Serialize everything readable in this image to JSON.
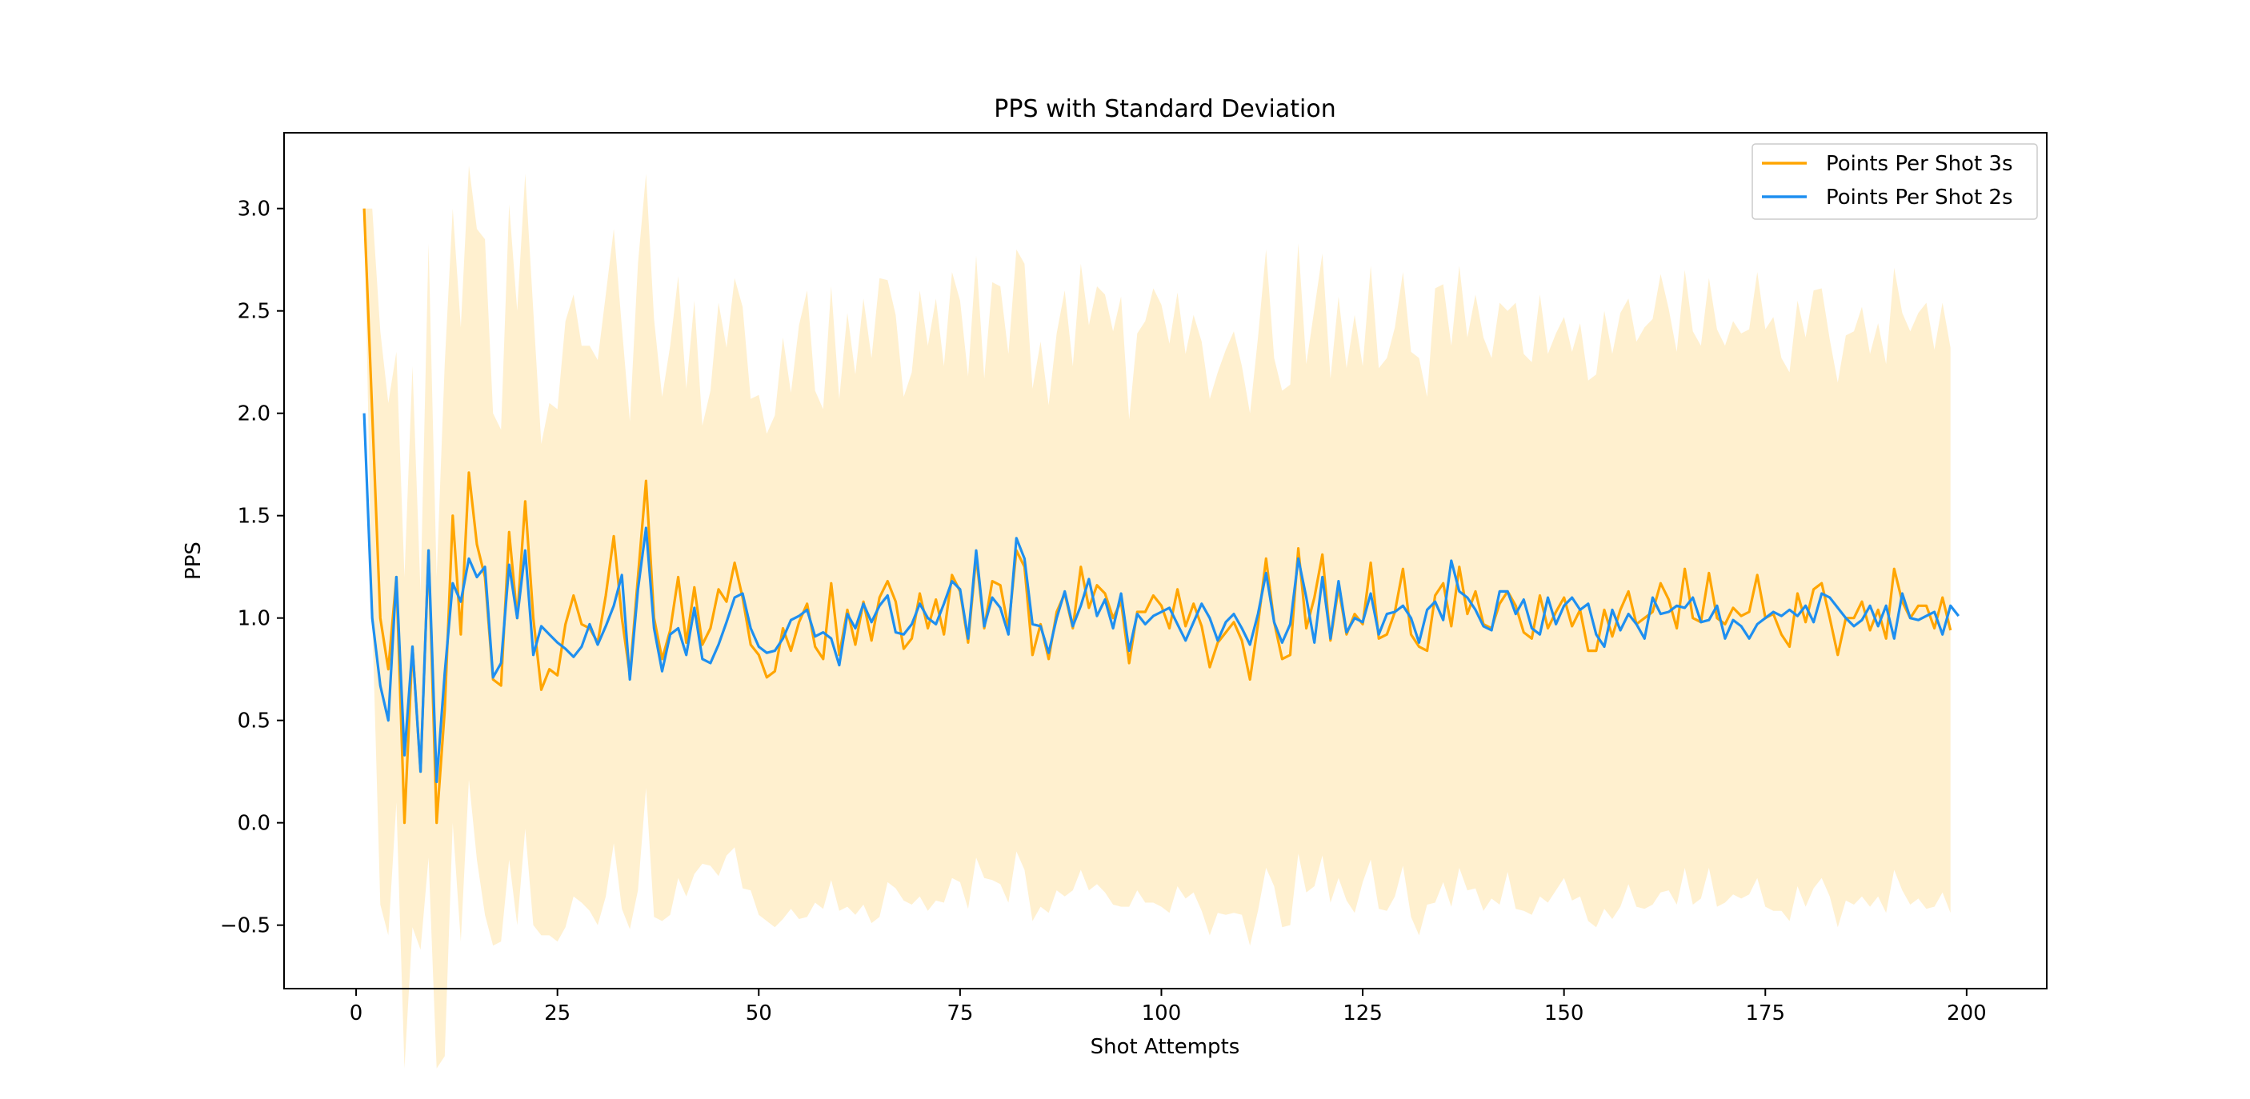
{
  "chart_data": {
    "type": "line",
    "title": "PPS with Standard Deviation",
    "xlabel": "Shot Attempts",
    "ylabel": "PPS",
    "xlim": [
      -8.95,
      209.95
    ],
    "ylim": [
      -0.81,
      3.37
    ],
    "x_ticks": [
      0,
      25,
      50,
      75,
      100,
      125,
      150,
      175,
      200
    ],
    "y_ticks": [
      -0.5,
      0.0,
      0.5,
      1.0,
      1.5,
      2.0,
      2.5,
      3.0
    ],
    "y_tick_labels": [
      "−0.5",
      "0.0",
      "0.5",
      "1.0",
      "1.5",
      "2.0",
      "2.5",
      "3.0"
    ],
    "x_tick_labels": [
      "0",
      "25",
      "50",
      "75",
      "100",
      "125",
      "150",
      "175",
      "200"
    ],
    "grid": false,
    "legend_position": "top-right",
    "shaded_band": "mean ± standard deviation",
    "x_start": 1,
    "series": [
      {
        "name": "Points Per Shot 3s",
        "color": "#ffa500",
        "band_color": "#ffe4a8",
        "values": [
          3.0,
          2.0,
          1.0,
          0.75,
          1.2,
          0.0,
          0.86,
          0.25,
          1.33,
          0.0,
          0.55,
          1.5,
          0.92,
          1.71,
          1.36,
          1.2,
          0.7,
          0.67,
          1.42,
          1.0,
          1.57,
          1.0,
          0.65,
          0.75,
          0.72,
          0.97,
          1.11,
          0.97,
          0.95,
          0.88,
          1.11,
          1.4,
          1.0,
          0.72,
          1.2,
          1.67,
          1.0,
          0.8,
          0.94,
          1.2,
          0.88,
          1.15,
          0.87,
          0.95,
          1.14,
          1.08,
          1.27,
          1.1,
          0.87,
          0.82,
          0.71,
          0.74,
          0.95,
          0.84,
          0.98,
          1.07,
          0.86,
          0.8,
          1.17,
          0.82,
          1.04,
          0.87,
          1.08,
          0.89,
          1.1,
          1.18,
          1.08,
          0.85,
          0.9,
          1.12,
          0.95,
          1.09,
          0.92,
          1.21,
          1.13,
          0.88,
          1.3,
          0.95,
          1.18,
          1.16,
          0.95,
          1.33,
          1.25,
          0.82,
          0.97,
          0.8,
          1.03,
          1.12,
          0.95,
          1.25,
          1.05,
          1.16,
          1.12,
          1.0,
          1.08,
          0.78,
          1.03,
          1.03,
          1.11,
          1.06,
          0.95,
          1.14,
          0.96,
          1.07,
          0.96,
          0.76,
          0.88,
          0.93,
          0.98,
          0.89,
          0.7,
          0.97,
          1.29,
          0.98,
          0.8,
          0.82,
          1.34,
          0.95,
          1.1,
          1.31,
          0.89,
          1.15,
          0.92,
          1.02,
          0.97,
          1.27,
          0.9,
          0.92,
          1.03,
          1.24,
          0.92,
          0.86,
          0.84,
          1.11,
          1.17,
          0.96,
          1.25,
          1.02,
          1.13,
          0.97,
          0.95,
          1.07,
          1.13,
          1.06,
          0.93,
          0.9,
          1.11,
          0.95,
          1.03,
          1.1,
          0.96,
          1.04,
          0.84,
          0.84,
          1.04,
          0.91,
          1.04,
          1.13,
          0.97,
          1.0,
          1.03,
          1.17,
          1.09,
          0.95,
          1.24,
          1.0,
          0.98,
          1.22,
          1.0,
          0.97,
          1.05,
          1.01,
          1.03,
          1.21,
          1.0,
          1.02,
          0.92,
          0.86,
          1.12,
          0.98,
          1.14,
          1.17,
          1.0,
          0.82,
          1.0,
          1.0,
          1.08,
          0.94,
          1.04,
          0.9,
          1.24,
          1.08,
          1.0,
          1.06,
          1.06,
          0.95,
          1.1,
          0.94
        ],
        "std": [
          0.0,
          1.0,
          1.4,
          1.3,
          1.1,
          1.2,
          1.37,
          0.87,
          1.5,
          1.2,
          1.69,
          1.5,
          1.5,
          1.5,
          1.54,
          1.65,
          1.3,
          1.25,
          1.6,
          1.5,
          1.6,
          1.5,
          1.2,
          1.3,
          1.3,
          1.48,
          1.47,
          1.36,
          1.38,
          1.38,
          1.47,
          1.5,
          1.42,
          1.24,
          1.53,
          1.5,
          1.46,
          1.28,
          1.39,
          1.47,
          1.24,
          1.4,
          1.07,
          1.16,
          1.4,
          1.24,
          1.39,
          1.42,
          1.2,
          1.27,
          1.19,
          1.25,
          1.42,
          1.26,
          1.45,
          1.53,
          1.25,
          1.22,
          1.45,
          1.25,
          1.45,
          1.32,
          1.48,
          1.38,
          1.56,
          1.47,
          1.4,
          1.23,
          1.3,
          1.48,
          1.38,
          1.47,
          1.31,
          1.48,
          1.42,
          1.3,
          1.47,
          1.22,
          1.46,
          1.46,
          1.34,
          1.47,
          1.48,
          1.3,
          1.38,
          1.24,
          1.36,
          1.48,
          1.28,
          1.48,
          1.38,
          1.46,
          1.46,
          1.4,
          1.49,
          1.19,
          1.36,
          1.42,
          1.5,
          1.47,
          1.39,
          1.45,
          1.33,
          1.41,
          1.39,
          1.31,
          1.32,
          1.38,
          1.42,
          1.34,
          1.3,
          1.4,
          1.51,
          1.29,
          1.31,
          1.32,
          1.49,
          1.29,
          1.41,
          1.47,
          1.28,
          1.42,
          1.3,
          1.46,
          1.26,
          1.45,
          1.32,
          1.35,
          1.39,
          1.45,
          1.38,
          1.41,
          1.24,
          1.5,
          1.46,
          1.37,
          1.47,
          1.35,
          1.45,
          1.4,
          1.32,
          1.47,
          1.37,
          1.48,
          1.36,
          1.35,
          1.47,
          1.34,
          1.36,
          1.37,
          1.34,
          1.4,
          1.32,
          1.35,
          1.46,
          1.38,
          1.45,
          1.43,
          1.38,
          1.42,
          1.43,
          1.51,
          1.42,
          1.35,
          1.46,
          1.4,
          1.35,
          1.44,
          1.41,
          1.36,
          1.4,
          1.38,
          1.38,
          1.48,
          1.41,
          1.45,
          1.35,
          1.34,
          1.43,
          1.39,
          1.46,
          1.44,
          1.36,
          1.33,
          1.38,
          1.4,
          1.44,
          1.35,
          1.4,
          1.34,
          1.47,
          1.41,
          1.4,
          1.43,
          1.48,
          1.36,
          1.44,
          1.38
        ]
      },
      {
        "name": "Points Per Shot 2s",
        "color": "#1e8ff0",
        "band_color": "#aac8e6",
        "values": [
          2.0,
          1.0,
          0.67,
          0.5,
          1.2,
          0.33,
          0.86,
          0.25,
          1.33,
          0.2,
          0.73,
          1.17,
          1.08,
          1.29,
          1.2,
          1.25,
          0.71,
          0.78,
          1.26,
          1.0,
          1.33,
          0.82,
          0.96,
          0.92,
          0.88,
          0.85,
          0.81,
          0.86,
          0.97,
          0.87,
          0.96,
          1.06,
          1.21,
          0.7,
          1.14,
          1.44,
          0.95,
          0.74,
          0.92,
          0.95,
          0.82,
          1.05,
          0.8,
          0.78,
          0.87,
          0.98,
          1.1,
          1.12,
          0.95,
          0.86,
          0.83,
          0.84,
          0.9,
          0.99,
          1.01,
          1.04,
          0.91,
          0.93,
          0.9,
          0.77,
          1.02,
          0.95,
          1.07,
          0.98,
          1.06,
          1.11,
          0.93,
          0.92,
          0.97,
          1.07,
          1.0,
          0.97,
          1.07,
          1.18,
          1.14,
          0.9,
          1.33,
          0.96,
          1.1,
          1.05,
          0.92,
          1.39,
          1.29,
          0.97,
          0.96,
          0.83,
          1.0,
          1.13,
          0.96,
          1.06,
          1.19,
          1.01,
          1.09,
          0.95,
          1.12,
          0.84,
          1.02,
          0.97,
          1.01,
          1.03,
          1.05,
          0.97,
          0.89,
          0.98,
          1.07,
          1.0,
          0.89,
          0.98,
          1.02,
          0.95,
          0.87,
          1.02,
          1.22,
          0.98,
          0.88,
          0.97,
          1.29,
          1.1,
          0.88,
          1.2,
          0.9,
          1.18,
          0.93,
          1.0,
          0.98,
          1.12,
          0.92,
          1.02,
          1.03,
          1.06,
          1.0,
          0.88,
          1.04,
          1.08,
          0.99,
          1.28,
          1.13,
          1.1,
          1.04,
          0.96,
          0.94,
          1.13,
          1.13,
          1.02,
          1.09,
          0.95,
          0.92,
          1.1,
          0.97,
          1.06,
          1.1,
          1.04,
          1.07,
          0.92,
          0.86,
          1.04,
          0.94,
          1.02,
          0.97,
          0.9,
          1.1,
          1.02,
          1.03,
          1.06,
          1.05,
          1.1,
          0.98,
          0.99,
          1.06,
          0.9,
          0.99,
          0.96,
          0.9,
          0.97,
          1.0,
          1.03,
          1.01,
          1.04,
          1.01,
          1.06,
          0.98,
          1.12,
          1.1,
          1.05,
          1.0,
          0.96,
          0.99,
          1.06,
          0.96,
          1.06,
          0.9,
          1.12,
          1.0,
          0.99,
          1.01,
          1.03,
          0.92,
          1.06,
          1.01
        ]
      }
    ]
  }
}
